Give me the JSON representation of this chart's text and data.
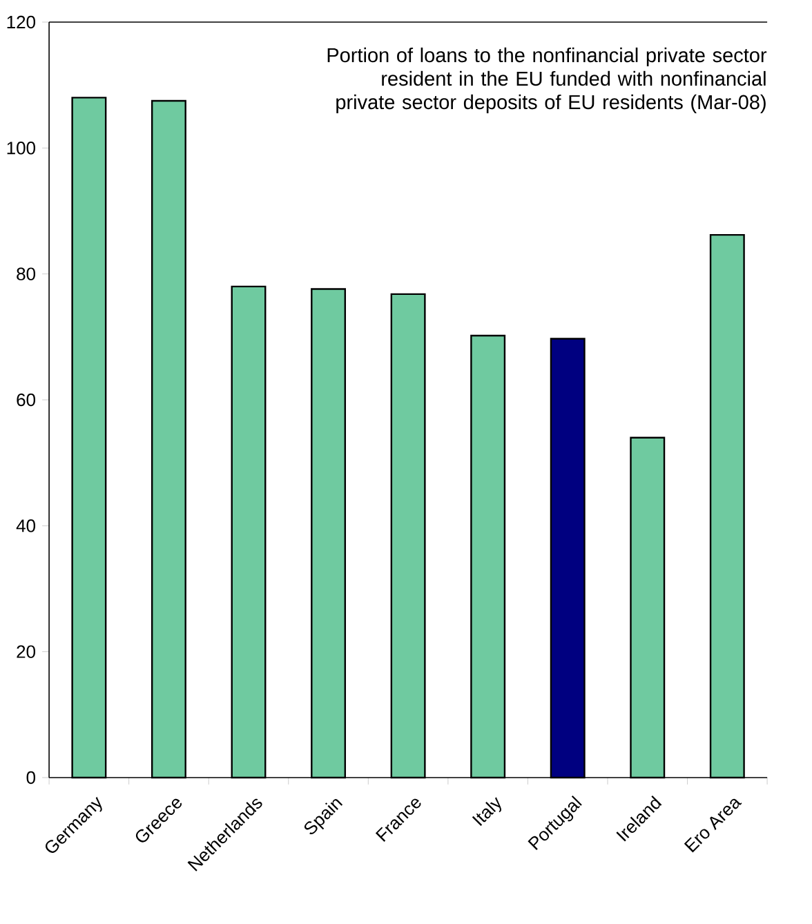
{
  "chart_data": {
    "type": "bar",
    "title": "Portion of loans to the nonfinancial private sector resident in the EU funded with nonfinancial private sector deposits of EU residents (Mar-08)",
    "categories": [
      "Germany",
      "Greece",
      "Netherlands",
      "Spain",
      "France",
      "Italy",
      "Portugal",
      "Ireland",
      "Ero Area"
    ],
    "values": [
      108,
      107.5,
      78,
      77.6,
      76.8,
      70.2,
      69.7,
      54,
      86.2
    ],
    "colors": [
      "#6fcaa0",
      "#6fcaa0",
      "#6fcaa0",
      "#6fcaa0",
      "#6fcaa0",
      "#6fcaa0",
      "#000080",
      "#6fcaa0",
      "#6fcaa0"
    ],
    "ylim": [
      0,
      120
    ],
    "yticks": [
      0,
      20,
      40,
      60,
      80,
      100,
      120
    ]
  }
}
